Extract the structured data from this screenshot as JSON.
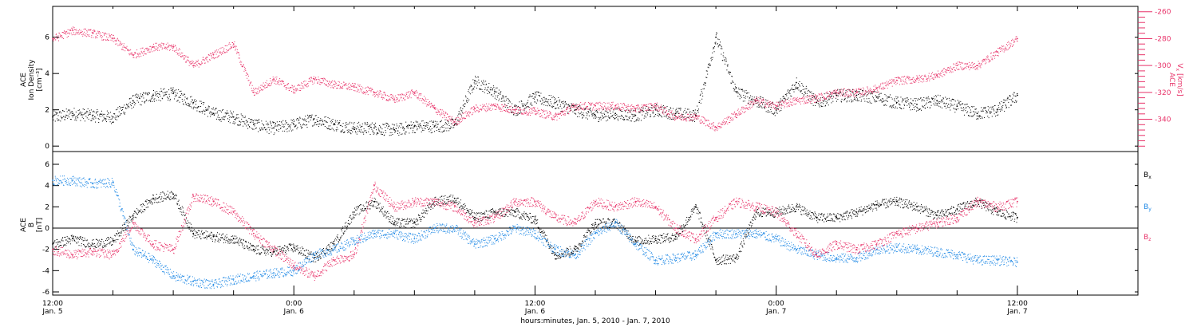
{
  "chart_data": [
    {
      "type": "scatter",
      "panel": "top",
      "ylabel_black": [
        "ACE",
        "Ion Density",
        "[cm⁻³]"
      ],
      "ylabel_pink": [
        "ACE",
        "V",
        "x",
        "[km/s]"
      ],
      "ylim_left": [
        -0.3,
        7.7
      ],
      "yticks_left": [
        0,
        2,
        4,
        6
      ],
      "ylim_right": [
        -364,
        -256
      ],
      "yticks_right": [
        -340,
        -320,
        -300,
        -280,
        -260
      ],
      "grid": false,
      "series": [
        {
          "name": "Ion Density",
          "axis": "left",
          "color": "#000000",
          "x": [
            0,
            1,
            2,
            3,
            4,
            5,
            6,
            7,
            8,
            9,
            10,
            11,
            12,
            13,
            14,
            15,
            16,
            17,
            18,
            19,
            20,
            21,
            22,
            23,
            24,
            25,
            26,
            27,
            28,
            29,
            30,
            31,
            32,
            33,
            34,
            35,
            36,
            37,
            38,
            39,
            40,
            41,
            42,
            43,
            44,
            45,
            46,
            47,
            48
          ],
          "y": [
            1.6,
            1.8,
            1.7,
            1.6,
            2.5,
            2.8,
            2.9,
            2.4,
            1.8,
            1.6,
            1.2,
            1.0,
            1.2,
            1.5,
            1.2,
            1.0,
            1.0,
            0.9,
            1.1,
            1.1,
            1.2,
            3.6,
            3.0,
            2.0,
            2.7,
            2.4,
            2.0,
            1.7,
            1.8,
            1.7,
            2.0,
            1.8,
            1.7,
            6.0,
            3.0,
            2.5,
            2.0,
            3.5,
            2.4,
            2.8,
            2.8,
            2.7,
            2.4,
            2.3,
            2.5,
            2.2,
            1.8,
            2.0,
            2.8
          ]
        },
        {
          "name": "Vx",
          "axis": "right",
          "color": "#e8346a",
          "x": [
            0,
            1,
            2,
            3,
            4,
            5,
            6,
            7,
            8,
            9,
            10,
            11,
            12,
            13,
            14,
            15,
            16,
            17,
            18,
            19,
            20,
            21,
            22,
            23,
            24,
            25,
            26,
            27,
            28,
            29,
            30,
            31,
            32,
            33,
            34,
            35,
            36,
            37,
            38,
            39,
            40,
            41,
            42,
            43,
            44,
            45,
            46,
            47,
            48
          ],
          "y": [
            -280,
            -274,
            -276,
            -280,
            -292,
            -286,
            -286,
            -300,
            -292,
            -284,
            -320,
            -310,
            -318,
            -310,
            -314,
            -316,
            -320,
            -325,
            -320,
            -332,
            -342,
            -332,
            -330,
            -333,
            -334,
            -338,
            -330,
            -330,
            -330,
            -332,
            -330,
            -338,
            -338,
            -346,
            -336,
            -326,
            -330,
            -326,
            -324,
            -320,
            -320,
            -317,
            -311,
            -310,
            -307,
            -300,
            -300,
            -290,
            -280
          ]
        }
      ]
    },
    {
      "type": "scatter",
      "panel": "bottom",
      "ylabel": [
        "ACE",
        "B",
        "[nT]"
      ],
      "ylim": [
        -6.3,
        7.2
      ],
      "yticks": [
        -6,
        -4,
        -2,
        0,
        2,
        4,
        6
      ],
      "zero_line": true,
      "grid": false,
      "x_axis": {
        "xlabel": "hours:minutes, Jan.  5, 2010 - Jan.  7, 2010",
        "major_ticks": [
          {
            "t": 0,
            "time": "12:00",
            "date": "Jan. 5"
          },
          {
            "t": 12,
            "time": "0:00",
            "date": "Jan. 6"
          },
          {
            "t": 24,
            "time": "12:00",
            "date": "Jan. 6"
          },
          {
            "t": 36,
            "time": "0:00",
            "date": "Jan. 7"
          },
          {
            "t": 48,
            "time": "12:00",
            "date": "Jan. 7"
          }
        ],
        "range": [
          0,
          54
        ]
      },
      "series": [
        {
          "name": "Bx",
          "legend": [
            "B",
            "x"
          ],
          "color": "#000000",
          "x": [
            0,
            1,
            2,
            3,
            4,
            5,
            6,
            7,
            8,
            9,
            10,
            11,
            12,
            13,
            14,
            15,
            16,
            17,
            18,
            19,
            20,
            21,
            22,
            23,
            24,
            25,
            26,
            27,
            28,
            29,
            30,
            31,
            32,
            33,
            34,
            35,
            36,
            37,
            38,
            39,
            40,
            41,
            42,
            43,
            44,
            45,
            46,
            47,
            48
          ],
          "y": [
            -1.5,
            -1.0,
            -1.5,
            -1.2,
            1.2,
            2.8,
            3.2,
            -0.5,
            -0.8,
            -1.0,
            -2.0,
            -2.2,
            -1.8,
            -2.8,
            -1.5,
            1.5,
            2.5,
            0.5,
            0.5,
            2.5,
            2.8,
            1.0,
            1.5,
            1.5,
            0.8,
            -2.5,
            -2.0,
            0.5,
            0.5,
            -1.2,
            -1.0,
            -0.8,
            2.0,
            -3.0,
            -2.8,
            1.5,
            1.5,
            2.0,
            1.0,
            1.0,
            1.5,
            2.2,
            2.5,
            2.0,
            1.2,
            1.8,
            2.5,
            1.5,
            1.0
          ]
        },
        {
          "name": "By",
          "legend": [
            "B",
            "y"
          ],
          "color": "#1e88e5",
          "x": [
            0,
            1,
            2,
            3,
            4,
            5,
            6,
            7,
            8,
            9,
            10,
            11,
            12,
            13,
            14,
            15,
            16,
            17,
            18,
            19,
            20,
            21,
            22,
            23,
            24,
            25,
            26,
            27,
            28,
            29,
            30,
            31,
            32,
            33,
            34,
            35,
            36,
            37,
            38,
            39,
            40,
            41,
            42,
            43,
            44,
            45,
            46,
            47,
            48
          ],
          "y": [
            4.5,
            4.5,
            4.2,
            4.3,
            -2.0,
            -3.0,
            -4.5,
            -5.0,
            -5.3,
            -4.8,
            -4.5,
            -4.2,
            -4.0,
            -2.5,
            -2.0,
            -1.2,
            -0.5,
            -0.5,
            -1.0,
            0.0,
            0.0,
            -1.5,
            -1.0,
            0.0,
            -0.5,
            -2.0,
            -2.5,
            -0.5,
            0.5,
            -1.5,
            -3.0,
            -2.8,
            -2.5,
            -0.5,
            -0.5,
            -0.5,
            -1.0,
            -2.0,
            -2.5,
            -2.8,
            -2.8,
            -2.0,
            -1.8,
            -2.0,
            -2.2,
            -2.5,
            -3.0,
            -3.0,
            -3.2
          ]
        },
        {
          "name": "Bz",
          "legend": [
            "B",
            "z"
          ],
          "color": "#e8346a",
          "x": [
            0,
            1,
            2,
            3,
            4,
            5,
            6,
            7,
            8,
            9,
            10,
            11,
            12,
            13,
            14,
            15,
            16,
            17,
            18,
            19,
            20,
            21,
            22,
            23,
            24,
            25,
            26,
            27,
            28,
            29,
            30,
            31,
            32,
            33,
            34,
            35,
            36,
            37,
            38,
            39,
            40,
            41,
            42,
            43,
            44,
            45,
            46,
            47,
            48
          ],
          "y": [
            -2.0,
            -2.5,
            -2.2,
            -2.5,
            0.5,
            -1.5,
            -2.0,
            3.0,
            2.5,
            1.5,
            -0.5,
            -2.0,
            -3.5,
            -4.5,
            -3.0,
            -2.5,
            4.0,
            2.0,
            2.5,
            2.5,
            2.0,
            0.5,
            1.0,
            2.5,
            2.5,
            1.0,
            0.5,
            2.5,
            2.0,
            2.5,
            2.0,
            0.0,
            -1.0,
            1.0,
            2.5,
            2.0,
            1.5,
            -0.5,
            -2.5,
            -1.5,
            -2.0,
            -1.5,
            -0.5,
            0.0,
            0.5,
            1.0,
            2.5,
            2.0,
            2.5
          ]
        }
      ]
    }
  ]
}
